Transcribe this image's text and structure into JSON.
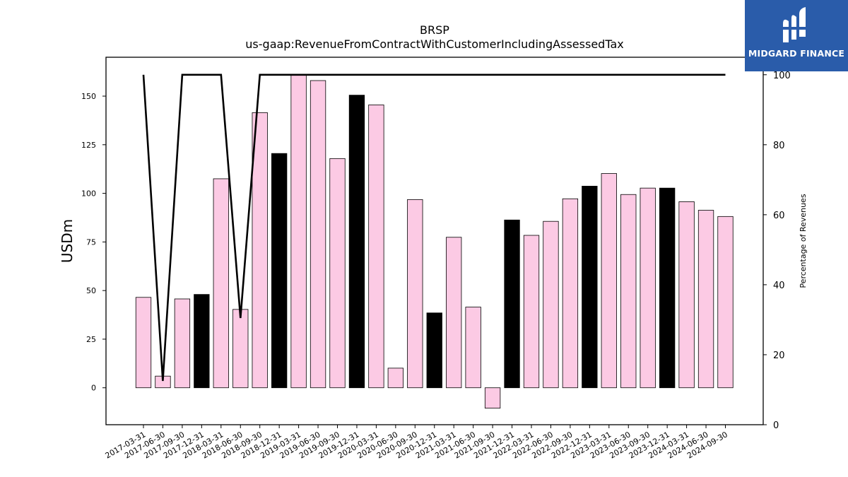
{
  "chart_data": {
    "type": "bar",
    "title": "BRSP",
    "subtitle": "us-gaap:RevenueFromContractWithCustomerIncludingAssessedTax",
    "ylabel": "USDm",
    "y2label": "Percentage of Revenues",
    "ylim": [
      -19,
      170
    ],
    "y2lim": [
      0,
      105
    ],
    "yticks": [
      0,
      25,
      50,
      75,
      100,
      125,
      150
    ],
    "y2ticks": [
      0,
      20,
      40,
      60,
      80,
      100
    ],
    "categories": [
      "2017-03-31",
      "2017-06-30",
      "2017-09-30",
      "2017-12-31",
      "2018-03-31",
      "2018-06-30",
      "2018-09-30",
      "2018-12-31",
      "2019-03-31",
      "2019-06-30",
      "2019-09-30",
      "2019-12-31",
      "2020-03-31",
      "2020-06-30",
      "2020-09-30",
      "2020-12-31",
      "2021-03-31",
      "2021-06-30",
      "2021-09-30",
      "2021-12-31",
      "2022-03-31",
      "2022-06-30",
      "2022-09-30",
      "2022-12-31",
      "2023-03-31",
      "2023-06-30",
      "2023-09-30",
      "2023-12-31",
      "2024-03-31",
      "2024-06-30",
      "2024-09-30"
    ],
    "values": [
      46.5,
      6,
      45.7,
      48,
      107.5,
      40.3,
      141.5,
      120.5,
      161,
      158,
      117.9,
      150.5,
      145.5,
      10.1,
      96.8,
      38.5,
      77.4,
      41.5,
      -10.5,
      86.3,
      78.4,
      85.6,
      97.2,
      103.7,
      110.2,
      99.4,
      102.7,
      102.7,
      95.7,
      91.3,
      88.1
    ],
    "highlight": [
      false,
      false,
      false,
      true,
      false,
      false,
      false,
      true,
      false,
      false,
      false,
      true,
      false,
      false,
      false,
      true,
      false,
      false,
      false,
      true,
      false,
      false,
      false,
      true,
      false,
      false,
      false,
      true,
      false,
      false,
      false
    ],
    "percentage_series": [
      100,
      12.5,
      100,
      100,
      100,
      30.5,
      100,
      100,
      100,
      100,
      100,
      100,
      100,
      100,
      100,
      100,
      100,
      100,
      100,
      100,
      100,
      100,
      100,
      100,
      100,
      100,
      100,
      100,
      100,
      100,
      100
    ],
    "colors": {
      "bar": "#fccae4",
      "highlight_bar": "#000000",
      "line": "#000000"
    }
  },
  "logo": {
    "text": "MIDGARD FINANCE",
    "background": "#2a5caa"
  }
}
